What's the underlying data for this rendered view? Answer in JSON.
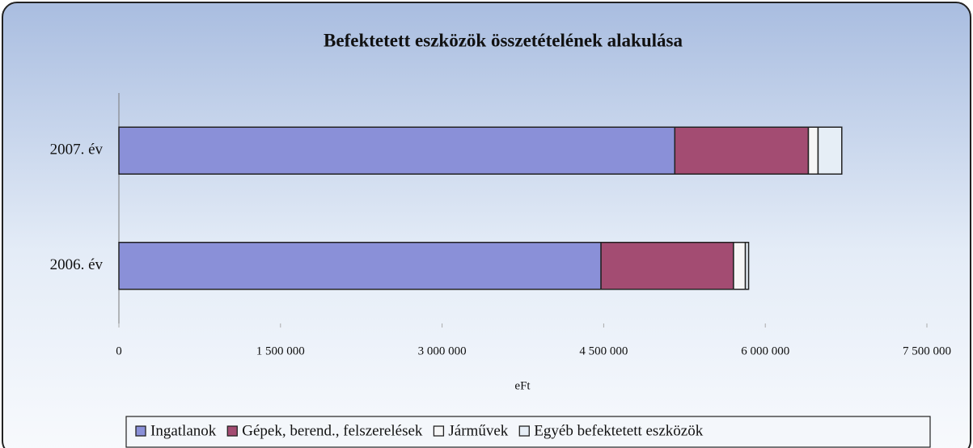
{
  "chart_data": {
    "type": "stacked_bar_horizontal",
    "title": "Befektetett eszközök összetételének alakulása",
    "x_label": "eFt",
    "categories": [
      "2007. év",
      "2006. év"
    ],
    "series": [
      {
        "name": "Ingatlanok",
        "color": "#8a90d8",
        "values": [
          5160000,
          4475000
        ]
      },
      {
        "name": "Gépek, berend., felszerelések",
        "color": "#a34c72",
        "values": [
          1240000,
          1230000
        ]
      },
      {
        "name": "Járművek",
        "color": "#f6f6f6",
        "values": [
          90000,
          110000
        ]
      },
      {
        "name": "Egyéb befektetett eszközök",
        "color": "#e6eef6",
        "values": [
          220000,
          30000
        ]
      }
    ],
    "xlim": [
      0,
      7500000
    ],
    "xticks": [
      0,
      {
        "value": 1500000,
        "label": "1 500 000"
      },
      {
        "value": 3000000,
        "label": "3 000 000"
      },
      {
        "value": 4500000,
        "label": "4 500 000"
      },
      {
        "value": 6000000,
        "label": "6 000 000"
      },
      {
        "value": 7500000,
        "label": "7 500 000"
      }
    ],
    "legend": "bottom"
  }
}
